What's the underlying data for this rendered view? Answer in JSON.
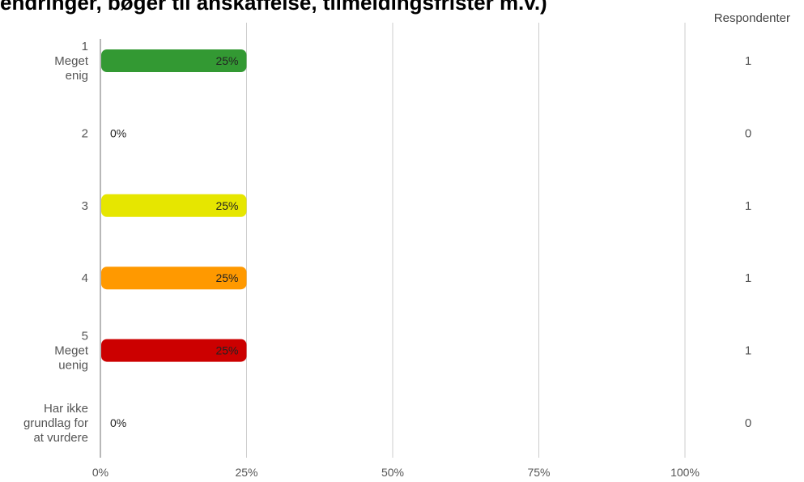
{
  "chart_data": {
    "type": "bar",
    "orientation": "horizontal",
    "title": "endringer, bøger til anskaffelse, tilmeldingsfrister m.v.)",
    "xlabel": "",
    "ylabel": "",
    "xlim": [
      0,
      100
    ],
    "x_ticks": [
      "0%",
      "25%",
      "50%",
      "75%",
      "100%"
    ],
    "x_tick_values": [
      0,
      25,
      50,
      75,
      100
    ],
    "grid": true,
    "respondents_header": "Respondenter",
    "categories": [
      {
        "lines": [
          "1",
          "Meget",
          "enig"
        ],
        "value": 25,
        "label": "25%",
        "count": "1",
        "color": "#339933"
      },
      {
        "lines": [
          "2"
        ],
        "value": 0,
        "label": "0%",
        "count": "0",
        "color": "#7dc242"
      },
      {
        "lines": [
          "3"
        ],
        "value": 25,
        "label": "25%",
        "count": "1",
        "color": "#e6e600"
      },
      {
        "lines": [
          "4"
        ],
        "value": 25,
        "label": "25%",
        "count": "1",
        "color": "#ff9900"
      },
      {
        "lines": [
          "5",
          "Meget",
          "uenig"
        ],
        "value": 25,
        "label": "25%",
        "count": "1",
        "color": "#cc0000"
      },
      {
        "lines": [
          "Har ikke",
          "grundlag for",
          "at vurdere"
        ],
        "value": 0,
        "label": "0%",
        "count": "0",
        "color": "#999999"
      }
    ]
  }
}
